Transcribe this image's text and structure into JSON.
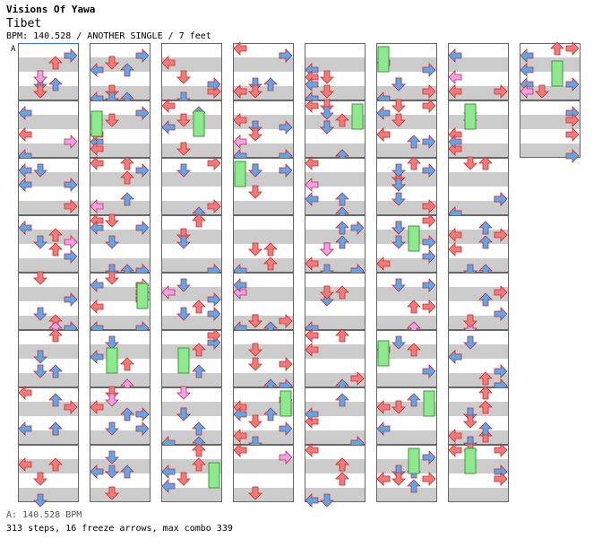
{
  "header": {
    "title": "Visions Of Yawa",
    "song": "Tibet",
    "info": "BPM: 140.528 / ANOTHER SINGLE / 7 feet",
    "section_marker": "A"
  },
  "footer": {
    "bpm_line": "A: 140.528 BPM",
    "stats_line": "313 steps, 16 freeze arrows, max combo 339"
  },
  "chart_data": {
    "type": "step-chart",
    "bpm": 140.528,
    "difficulty": "ANOTHER",
    "style": "SINGLE",
    "feet": 7,
    "steps": 313,
    "freeze_arrows": 16,
    "max_combo": 339,
    "columns": 8,
    "measures_per_column": 8,
    "total_measures": 58,
    "lanes": [
      "left",
      "down",
      "up",
      "right"
    ],
    "colors": {
      "quarter": "#f47a7a",
      "eighth": "#5aa8f0",
      "sixteenth": "#f0a0f0",
      "freeze": "#8ee88e",
      "stripe": "#cccccc"
    }
  }
}
